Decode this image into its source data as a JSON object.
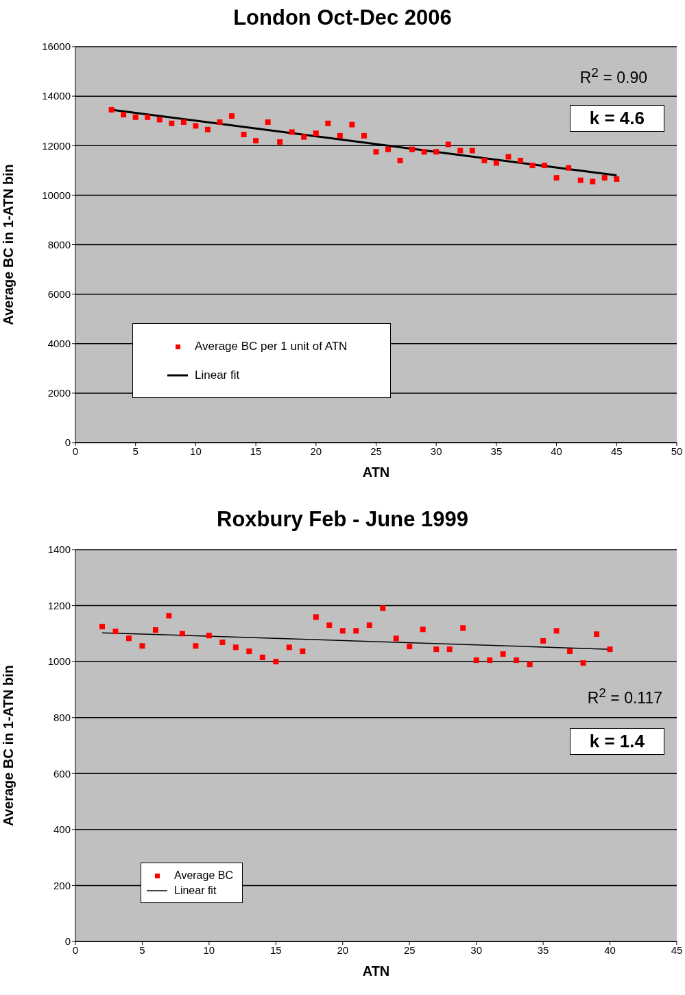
{
  "chart_data": [
    {
      "type": "scatter",
      "title": "London Oct-Dec 2006",
      "xlabel": "ATN",
      "ylabel": "Average BC in 1-ATN bin",
      "xlim": [
        0,
        50
      ],
      "xticks": [
        0,
        5,
        10,
        15,
        20,
        25,
        30,
        35,
        40,
        45,
        50
      ],
      "ylim": [
        0,
        16000
      ],
      "yticks": [
        0,
        2000,
        4000,
        6000,
        8000,
        10000,
        12000,
        14000,
        16000
      ],
      "grid": "y",
      "legend": "bottom left",
      "annotations": [
        "R$^{2}$ = 0.90",
        "k = 4.6"
      ],
      "series": [
        {
          "name": "Average BC per 1 unit of ATN",
          "type": "scatter",
          "marker": "square",
          "color": "#ff0000",
          "x": [
            3,
            4,
            5,
            6,
            7,
            8,
            9,
            10,
            11,
            12,
            13,
            14,
            15,
            16,
            17,
            18,
            19,
            20,
            21,
            22,
            23,
            24,
            25,
            26,
            27,
            28,
            29,
            30,
            31,
            32,
            33,
            34,
            35,
            36,
            37,
            38,
            39,
            40,
            41,
            42,
            43,
            44,
            45
          ],
          "values": [
            13450,
            13250,
            13150,
            13150,
            13050,
            12900,
            12950,
            12800,
            12650,
            12950,
            13200,
            12450,
            12200,
            12950,
            12150,
            12550,
            12350,
            12500,
            12900,
            12400,
            12850,
            12400,
            11750,
            11850,
            11400,
            11850,
            11750,
            11750,
            12050,
            11800,
            11800,
            11400,
            11300,
            11550,
            11400,
            11200,
            11200,
            10700,
            11100,
            10600,
            10550,
            10700,
            10650
          ]
        },
        {
          "name": "Linear fit",
          "type": "line",
          "marker": "none",
          "color": "#000000",
          "line_style": "solid",
          "x": [
            3,
            45
          ],
          "values": [
            13450,
            10800
          ]
        }
      ]
    },
    {
      "type": "scatter",
      "title": "Roxbury   Feb - June 1999",
      "xlabel": "ATN",
      "ylabel": "Average BC in 1-ATN bin",
      "xlim": [
        0,
        45
      ],
      "xticks": [
        0,
        5,
        10,
        15,
        20,
        25,
        30,
        35,
        40,
        45
      ],
      "ylim": [
        0,
        1400
      ],
      "yticks": [
        0,
        200,
        400,
        600,
        800,
        1000,
        1200,
        1400
      ],
      "grid": "y",
      "legend": "bottom left",
      "annotations": [
        "R$^{2}$ = 0.117",
        "k = 1.4"
      ],
      "series": [
        {
          "name": "Average BC",
          "type": "scatter",
          "marker": "square",
          "color": "#ff0000",
          "x": [
            2,
            3,
            4,
            5,
            6,
            7,
            8,
            9,
            10,
            11,
            12,
            13,
            14,
            15,
            16,
            17,
            18,
            19,
            20,
            21,
            22,
            23,
            24,
            25,
            26,
            27,
            28,
            29,
            30,
            31,
            32,
            33,
            34,
            35,
            36,
            37,
            38,
            39,
            40
          ],
          "values": [
            1125,
            1108,
            1083,
            1056,
            1113,
            1164,
            1100,
            1056,
            1093,
            1069,
            1051,
            1037,
            1015,
            1000,
            1051,
            1037,
            1159,
            1130,
            1110,
            1110,
            1130,
            1191,
            1083,
            1054,
            1115,
            1044,
            1044,
            1120,
            1005,
            1005,
            1027,
            1005,
            990,
            1074,
            1110,
            1037,
            995,
            1098,
            1044
          ]
        },
        {
          "name": "Linear fit",
          "type": "line",
          "marker": "none",
          "color": "#000000",
          "line_style": "solid",
          "x": [
            2,
            40
          ],
          "values": [
            1103,
            1044
          ]
        }
      ]
    }
  ]
}
